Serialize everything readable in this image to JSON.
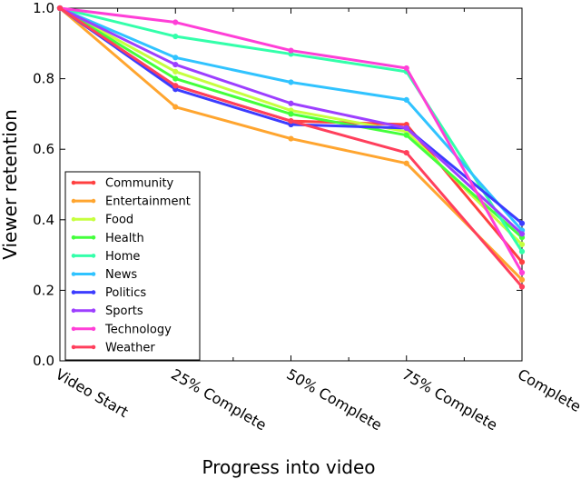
{
  "chart_data": {
    "type": "line",
    "title": "",
    "xlabel": "Progress into video",
    "ylabel": "Viewer retention",
    "categories": [
      "Video Start",
      "25% Complete",
      "50% Complete",
      "75% Complete",
      "Complete"
    ],
    "ylim": [
      0.0,
      1.0
    ],
    "yticks": [
      "0.0",
      "0.2",
      "0.4",
      "0.6",
      "0.8",
      "1.0"
    ],
    "grid": false,
    "legend_position": "lower-left",
    "series": [
      {
        "name": "Community",
        "color": "#ff4040",
        "values": [
          1.0,
          0.78,
          0.68,
          0.67,
          0.28
        ]
      },
      {
        "name": "Entertainment",
        "color": "#ffa52f",
        "values": [
          1.0,
          0.72,
          0.63,
          0.56,
          0.23
        ]
      },
      {
        "name": "Food",
        "color": "#c6ff3f",
        "values": [
          1.0,
          0.82,
          0.71,
          0.65,
          0.33
        ]
      },
      {
        "name": "Health",
        "color": "#44ff3c",
        "values": [
          1.0,
          0.8,
          0.7,
          0.64,
          0.35
        ]
      },
      {
        "name": "Home",
        "color": "#33ffaa",
        "values": [
          1.0,
          0.92,
          0.87,
          0.82,
          0.31
        ]
      },
      {
        "name": "News",
        "color": "#30c3ff",
        "values": [
          1.0,
          0.86,
          0.79,
          0.74,
          0.37
        ]
      },
      {
        "name": "Politics",
        "color": "#3c3cff",
        "values": [
          1.0,
          0.77,
          0.67,
          0.66,
          0.39
        ]
      },
      {
        "name": "Sports",
        "color": "#9d3fff",
        "values": [
          1.0,
          0.84,
          0.73,
          0.66,
          0.36
        ]
      },
      {
        "name": "Technology",
        "color": "#ff3fd7",
        "values": [
          1.0,
          0.96,
          0.88,
          0.83,
          0.25
        ]
      },
      {
        "name": "Weather",
        "color": "#ff3f5c",
        "values": [
          1.0,
          0.78,
          0.68,
          0.59,
          0.21
        ]
      }
    ]
  }
}
